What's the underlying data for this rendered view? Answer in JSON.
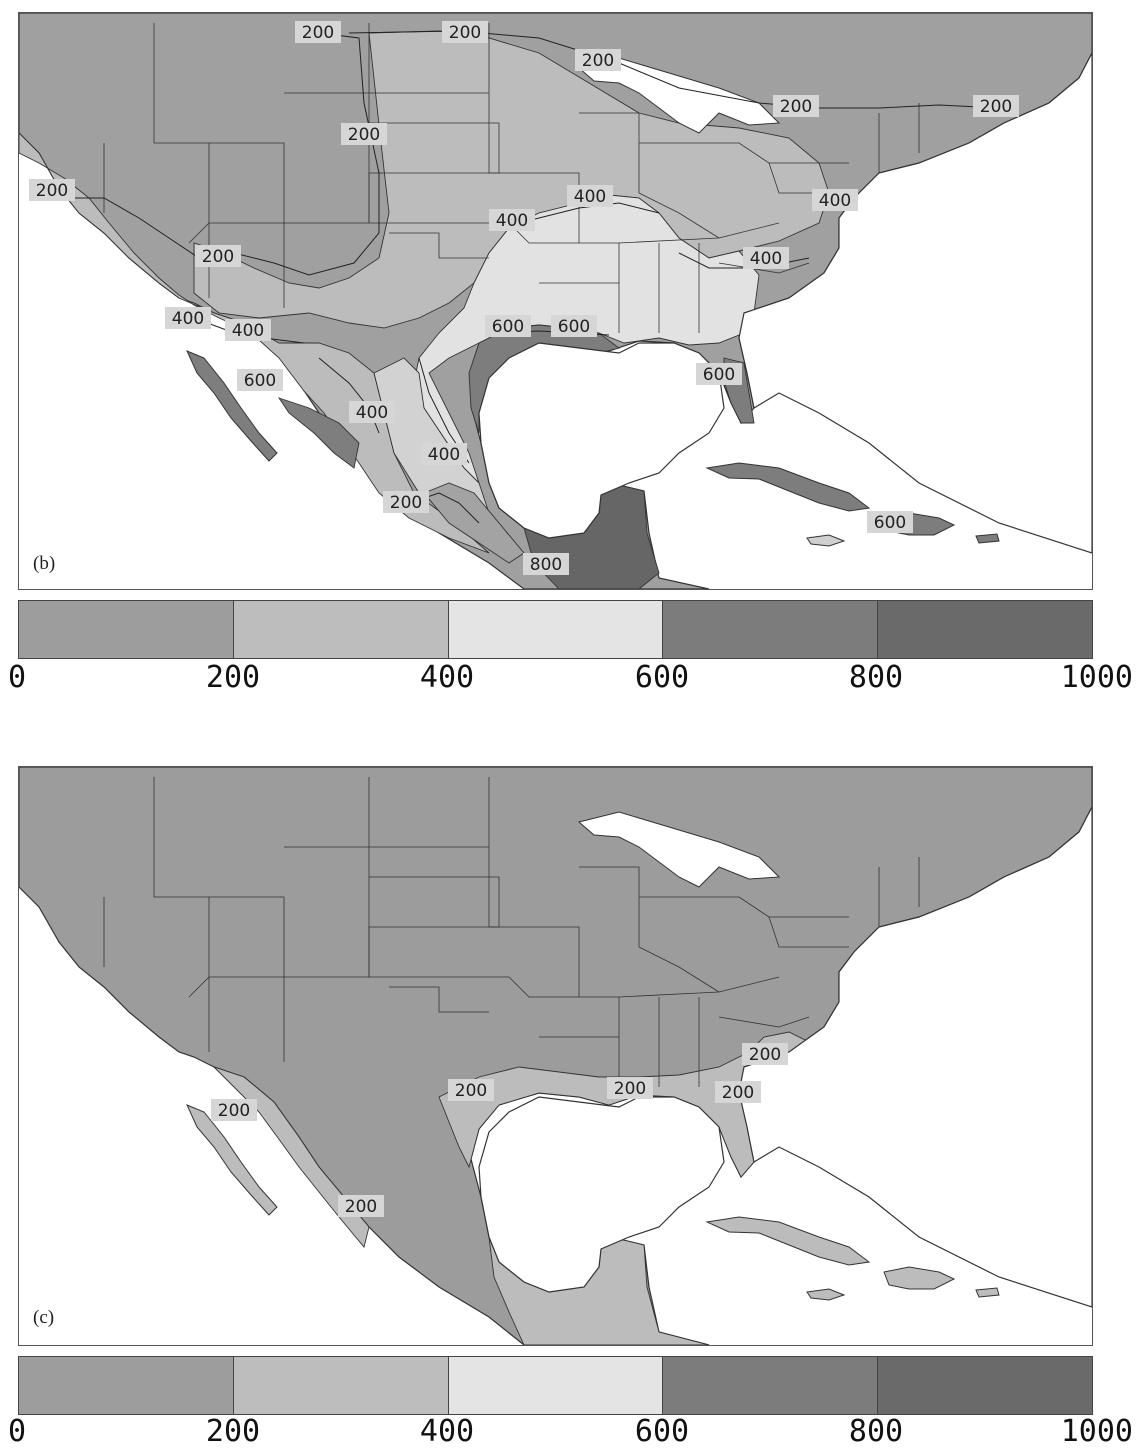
{
  "panels": [
    {
      "id": "b",
      "label": "(b)",
      "contour_labels": [
        "200",
        "200",
        "200",
        "200",
        "200",
        "200",
        "200",
        "200",
        "400",
        "400",
        "400",
        "400",
        "400",
        "400",
        "400",
        "400",
        "600",
        "600",
        "600",
        "600",
        "600",
        "200",
        "800",
        "400"
      ],
      "fill_colors": {
        "0-200": "#9a9a9a",
        "200-400": "#bcbcbc",
        "400-600": "#e2e2e2",
        "600-800": "#7d7d7d",
        "800-1000": "#666666"
      }
    },
    {
      "id": "c",
      "label": "(c)",
      "contour_labels": [
        "200",
        "200",
        "200",
        "200",
        "200",
        "200"
      ],
      "fill_colors": {
        "0-200": "#9a9a9a",
        "200-400": "#bcbcbc"
      }
    }
  ],
  "colorbar": {
    "ticks": [
      "0",
      "200",
      "400",
      "600",
      "800",
      "1000"
    ],
    "colors": [
      "#9d9d9d",
      "#bdbdbd",
      "#e4e4e4",
      "#7c7c7c",
      "#6a6a6a"
    ]
  }
}
